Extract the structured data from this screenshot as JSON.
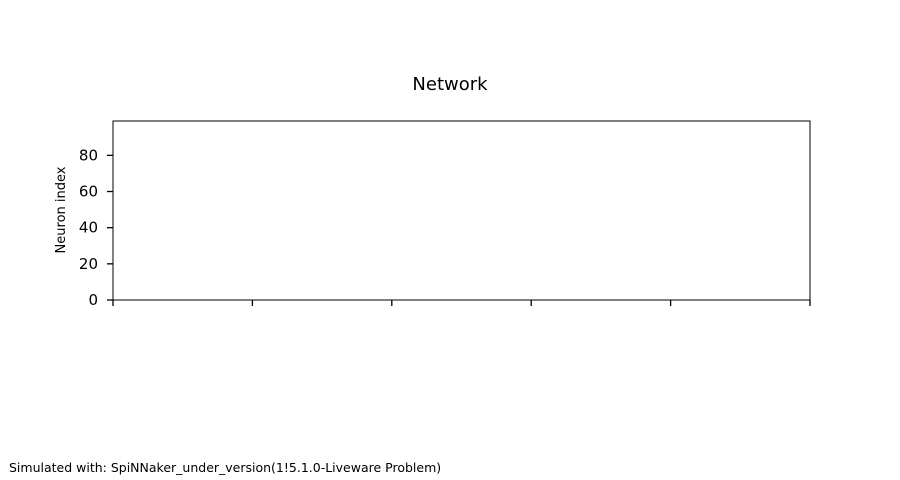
{
  "chart_data": {
    "type": "scatter",
    "title": "Network",
    "xlabel": "",
    "ylabel": "Neuron index",
    "ylim": [
      0,
      99
    ],
    "yticks": [
      0,
      20,
      40,
      60,
      80
    ],
    "xticks_count": 6,
    "xtick_labels": [],
    "series": [
      {
        "values": []
      }
    ],
    "grid": false,
    "legend": "none"
  },
  "footnote": "Simulated with: SpiNNaker_under_version(1!5.1.0-Liveware Problem)"
}
